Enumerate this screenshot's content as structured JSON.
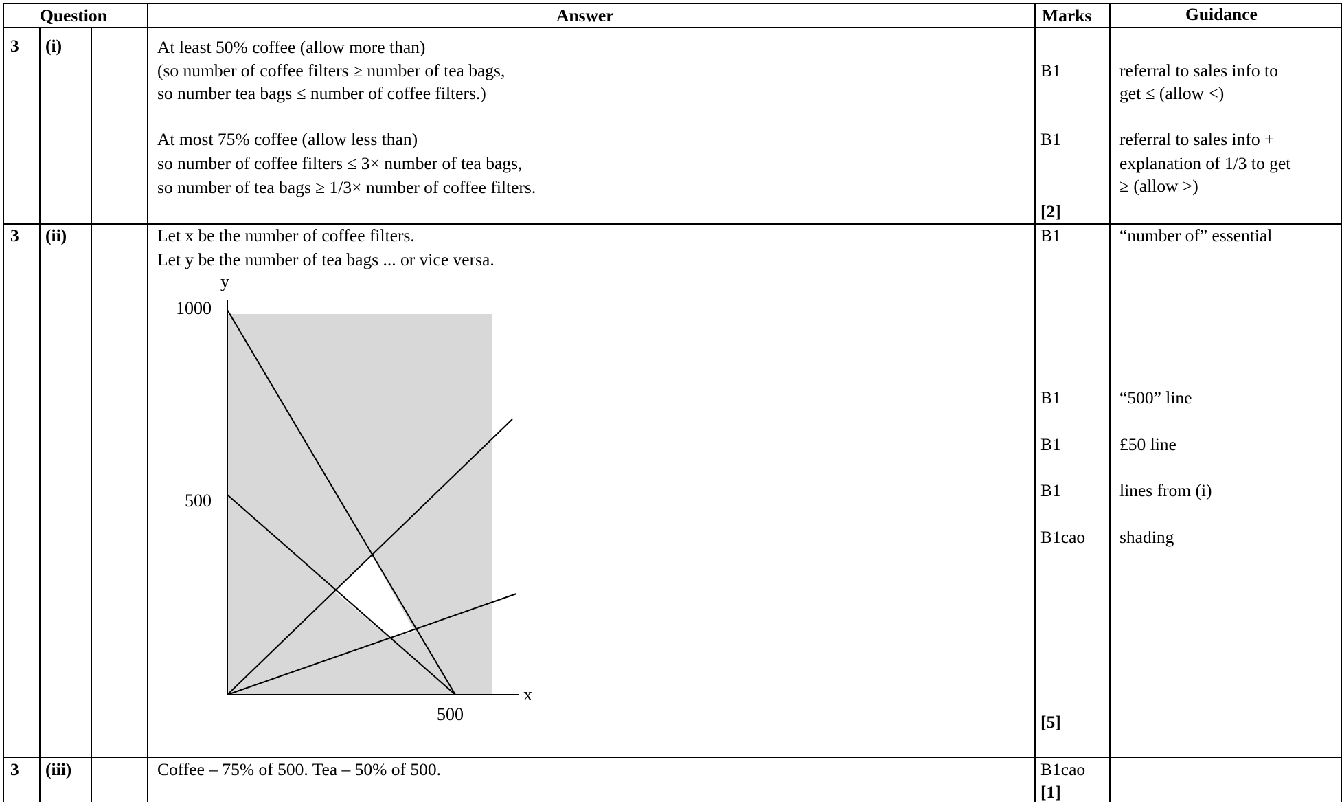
{
  "header": {
    "question": "Question",
    "answer": "Answer",
    "marks": "Marks",
    "guidance": "Guidance"
  },
  "rows": [
    {
      "qnum": "3",
      "part": "(i)",
      "answer_lines": [
        "At least 50% coffee (allow more than)",
        "(so number of coffee filters ≥ number of tea bags,",
        "so number tea bags ≤ number of coffee filters.)",
        "At most 75% coffee (allow less than)",
        "so number of coffee filters ≤ 3× number of tea bags,",
        "so number of tea bags ≥ 1/3× number of coffee filters."
      ],
      "marks": [
        "B1",
        "B1",
        "[2]"
      ],
      "guidance": [
        "referral to sales info to",
        "get ≤ (allow <)",
        "referral to sales info +",
        "explanation of 1/3 to get",
        "≥ (allow >)"
      ]
    },
    {
      "qnum": "3",
      "part": "(ii)",
      "answer_lines": [
        "Let x be the number of coffee filters.",
        "Let y be the number of tea bags ... or vice versa."
      ],
      "graph": {
        "y_axis_label": "y",
        "x_axis_label": "x",
        "y_tick_1000": "1000",
        "y_tick_500": "500",
        "x_tick_500": "500"
      },
      "marks": [
        "B1",
        "B1",
        "B1",
        "B1",
        "B1cao",
        "[5]"
      ],
      "guidance": [
        "“number of” essential",
        "“500” line",
        "£50 line",
        "lines from (i)",
        "shading"
      ]
    },
    {
      "qnum": "3",
      "part": "(iii)",
      "answer_lines": [
        "Coffee – 75% of 500.  Tea – 50% of 500."
      ],
      "marks": [
        "B1cao",
        "[1]"
      ],
      "guidance": []
    }
  ],
  "colors": {
    "shading": "#d8d8d8",
    "lines": "#000000"
  }
}
